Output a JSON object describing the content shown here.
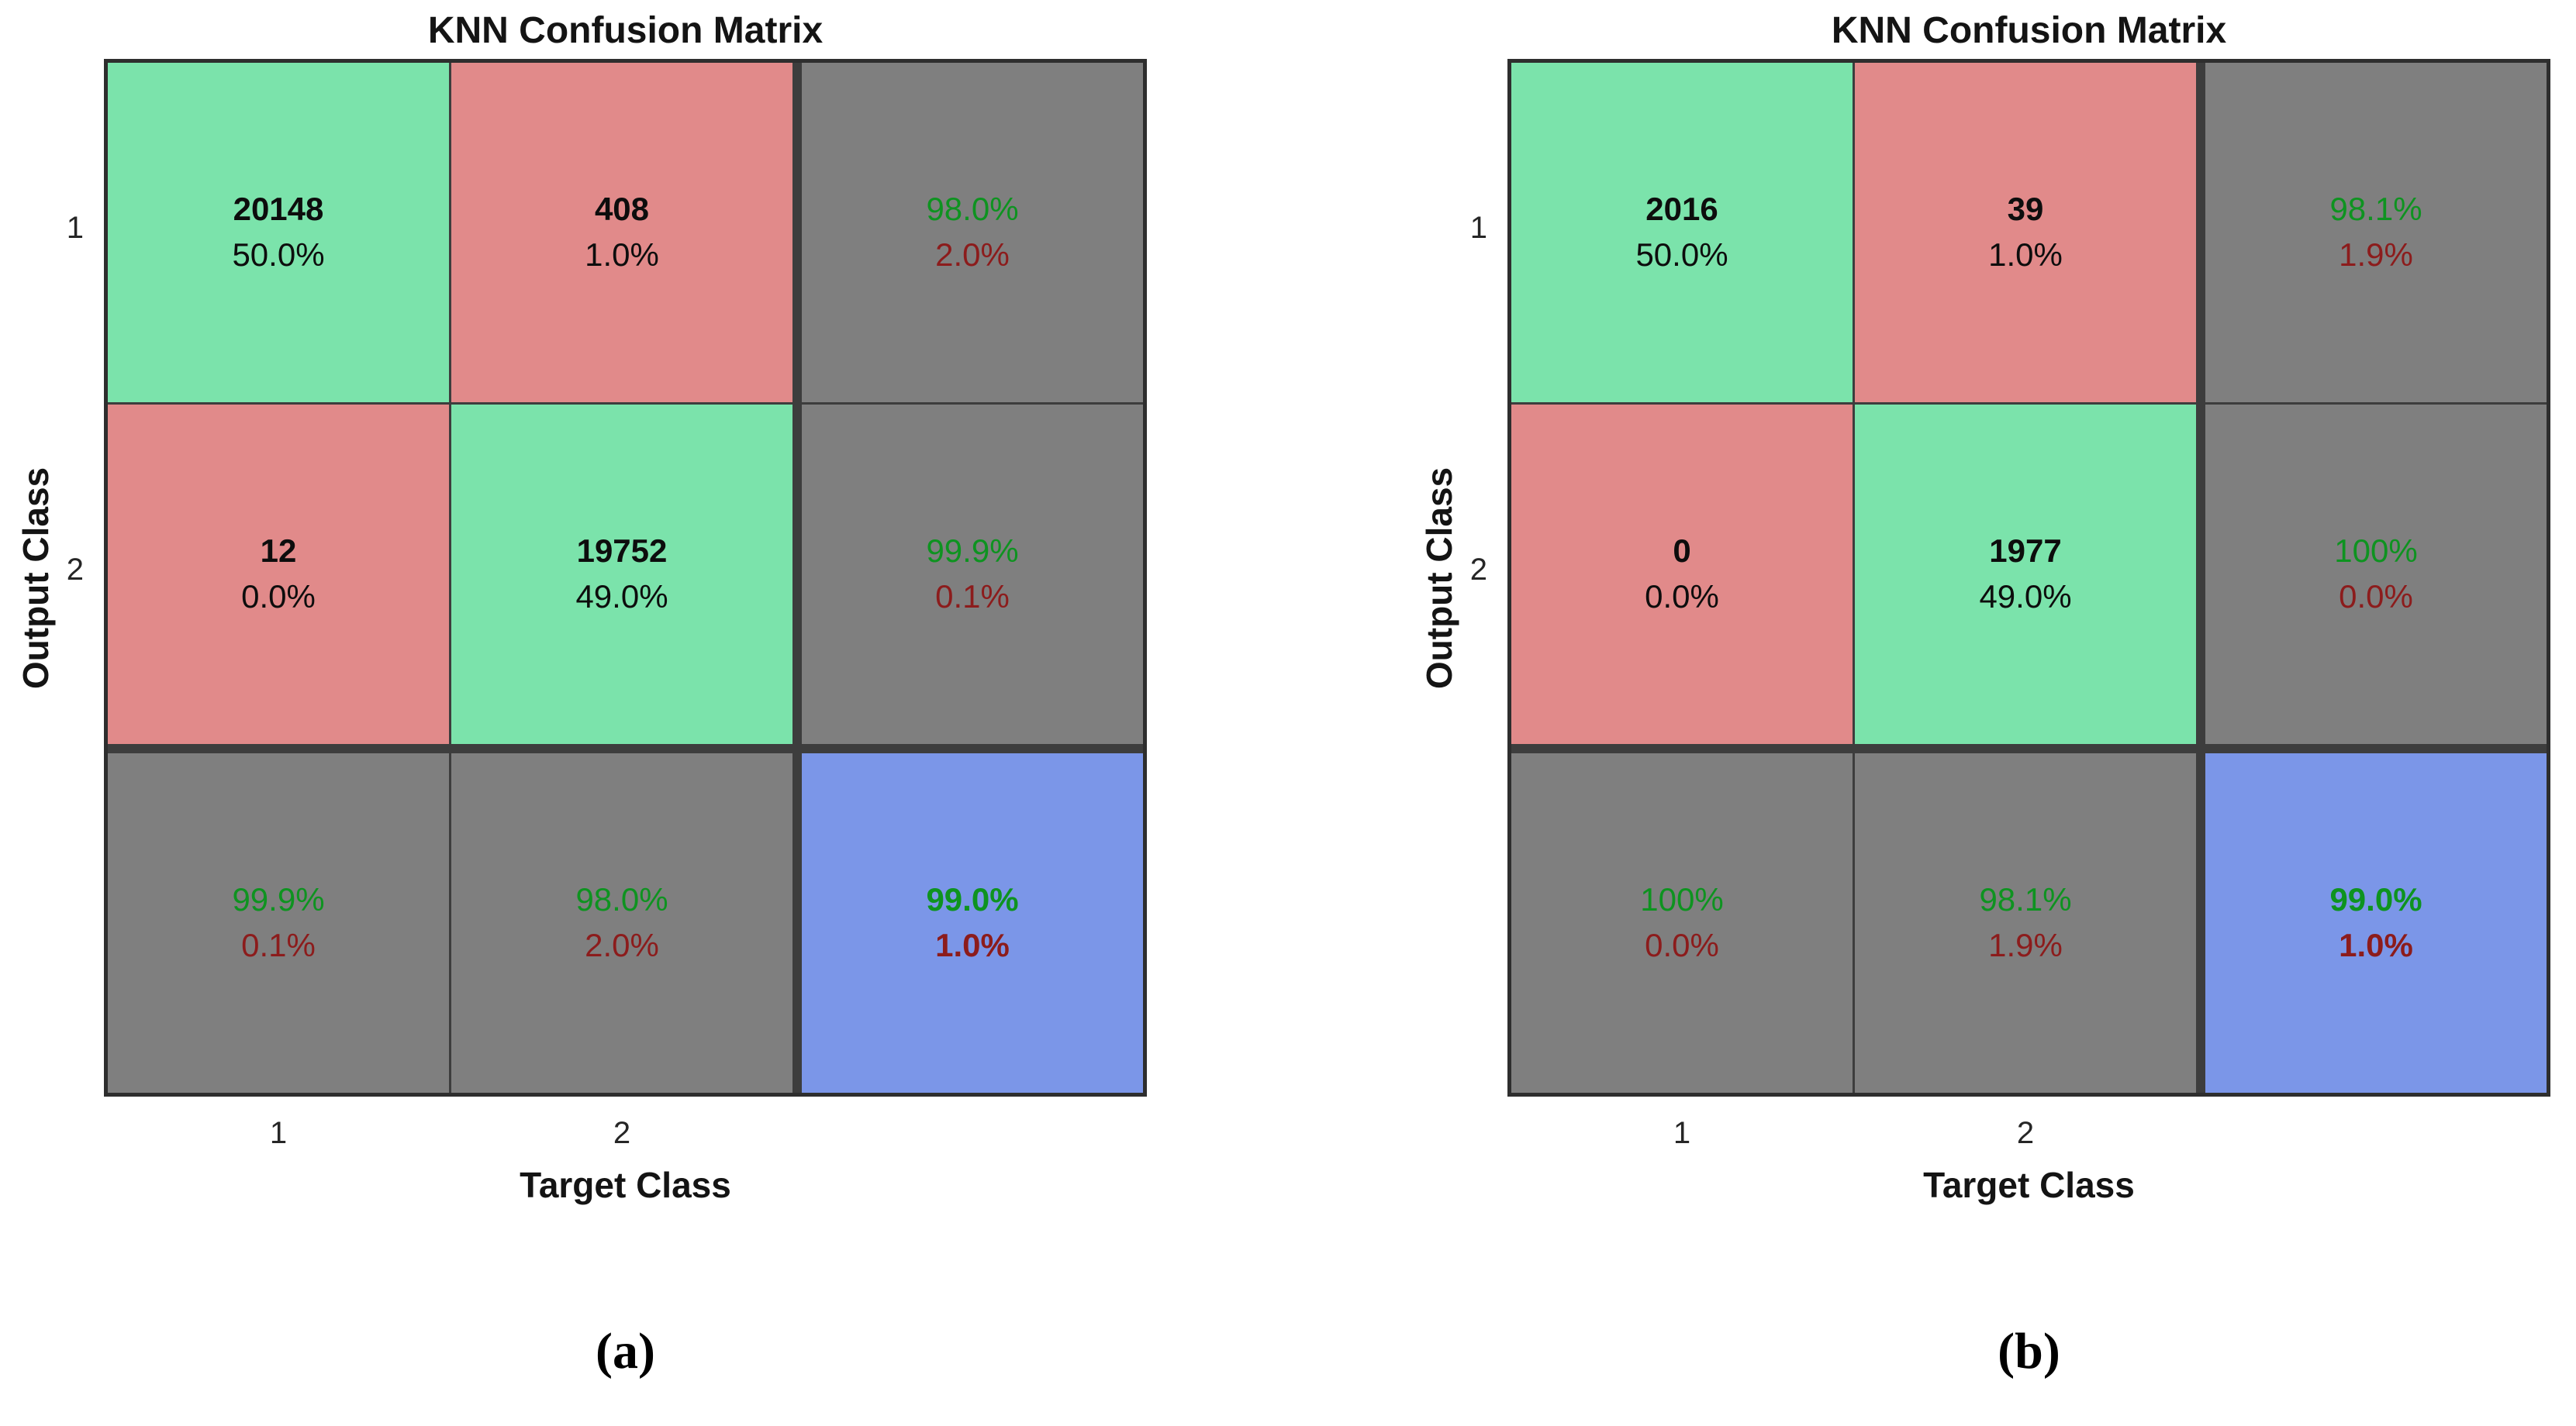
{
  "colors": {
    "cell_green": "#7BE3AB",
    "cell_red": "#E18A8A",
    "cell_gray": "#7F7F7F",
    "cell_blue": "#7B96E8",
    "good_text": "#0E9320",
    "bad_text": "#8C1C1C"
  },
  "figure": {
    "panels": [
      {
        "title": "KNN Confusion Matrix",
        "xlabel": "Target Class",
        "ylabel": "Output Class",
        "xticks": {
          "t1": "1",
          "t2": "2"
        },
        "yticks": {
          "t1": "1",
          "t2": "2"
        },
        "caption": "(a)",
        "cells": {
          "r1c1": {
            "count": "20148",
            "pct": "50.0%"
          },
          "r1c2": {
            "count": "408",
            "pct": "1.0%"
          },
          "r1c3": {
            "good": "98.0%",
            "bad": "2.0%"
          },
          "r2c1": {
            "count": "12",
            "pct": "0.0%"
          },
          "r2c2": {
            "count": "19752",
            "pct": "49.0%"
          },
          "r2c3": {
            "good": "99.9%",
            "bad": "0.1%"
          },
          "r3c1": {
            "good": "99.9%",
            "bad": "0.1%"
          },
          "r3c2": {
            "good": "98.0%",
            "bad": "2.0%"
          },
          "r3c3": {
            "good": "99.0%",
            "bad": "1.0%"
          }
        }
      },
      {
        "title": "KNN Confusion Matrix",
        "xlabel": "Target Class",
        "ylabel": "Output Class",
        "xticks": {
          "t1": "1",
          "t2": "2"
        },
        "yticks": {
          "t1": "1",
          "t2": "2"
        },
        "caption": "(b)",
        "cells": {
          "r1c1": {
            "count": "2016",
            "pct": "50.0%"
          },
          "r1c2": {
            "count": "39",
            "pct": "1.0%"
          },
          "r1c3": {
            "good": "98.1%",
            "bad": "1.9%"
          },
          "r2c1": {
            "count": "0",
            "pct": "0.0%"
          },
          "r2c2": {
            "count": "1977",
            "pct": "49.0%"
          },
          "r2c3": {
            "good": "100%",
            "bad": "0.0%"
          },
          "r3c1": {
            "good": "100%",
            "bad": "0.0%"
          },
          "r3c2": {
            "good": "98.1%",
            "bad": "1.9%"
          },
          "r3c3": {
            "good": "99.0%",
            "bad": "1.0%"
          }
        }
      }
    ]
  },
  "chart_data": [
    {
      "type": "heatmap",
      "subtype": "confusion_matrix",
      "title": "KNN Confusion Matrix",
      "xlabel": "Target Class",
      "ylabel": "Output Class",
      "classes": [
        "1",
        "2"
      ],
      "matrix_counts": [
        [
          20148,
          408
        ],
        [
          12,
          19752
        ]
      ],
      "matrix_percent": [
        [
          "50.0%",
          "1.0%"
        ],
        [
          "0.0%",
          "49.0%"
        ]
      ],
      "row_summary_good_bad": [
        [
          "98.0%",
          "2.0%"
        ],
        [
          "99.9%",
          "0.1%"
        ]
      ],
      "col_summary_good_bad": [
        [
          "99.9%",
          "0.1%"
        ],
        [
          "98.0%",
          "2.0%"
        ]
      ],
      "overall_good_bad": [
        "99.0%",
        "1.0%"
      ],
      "caption": "(a)",
      "legend_position": "none",
      "grid": "on"
    },
    {
      "type": "heatmap",
      "subtype": "confusion_matrix",
      "title": "KNN Confusion Matrix",
      "xlabel": "Target Class",
      "ylabel": "Output Class",
      "classes": [
        "1",
        "2"
      ],
      "matrix_counts": [
        [
          2016,
          39
        ],
        [
          0,
          1977
        ]
      ],
      "matrix_percent": [
        [
          "50.0%",
          "1.0%"
        ],
        [
          "0.0%",
          "49.0%"
        ]
      ],
      "row_summary_good_bad": [
        [
          "98.1%",
          "1.9%"
        ],
        [
          "100%",
          "0.0%"
        ]
      ],
      "col_summary_good_bad": [
        [
          "100%",
          "0.0%"
        ],
        [
          "98.1%",
          "1.9%"
        ]
      ],
      "overall_good_bad": [
        "99.0%",
        "1.0%"
      ],
      "caption": "(b)",
      "legend_position": "none",
      "grid": "on"
    }
  ]
}
